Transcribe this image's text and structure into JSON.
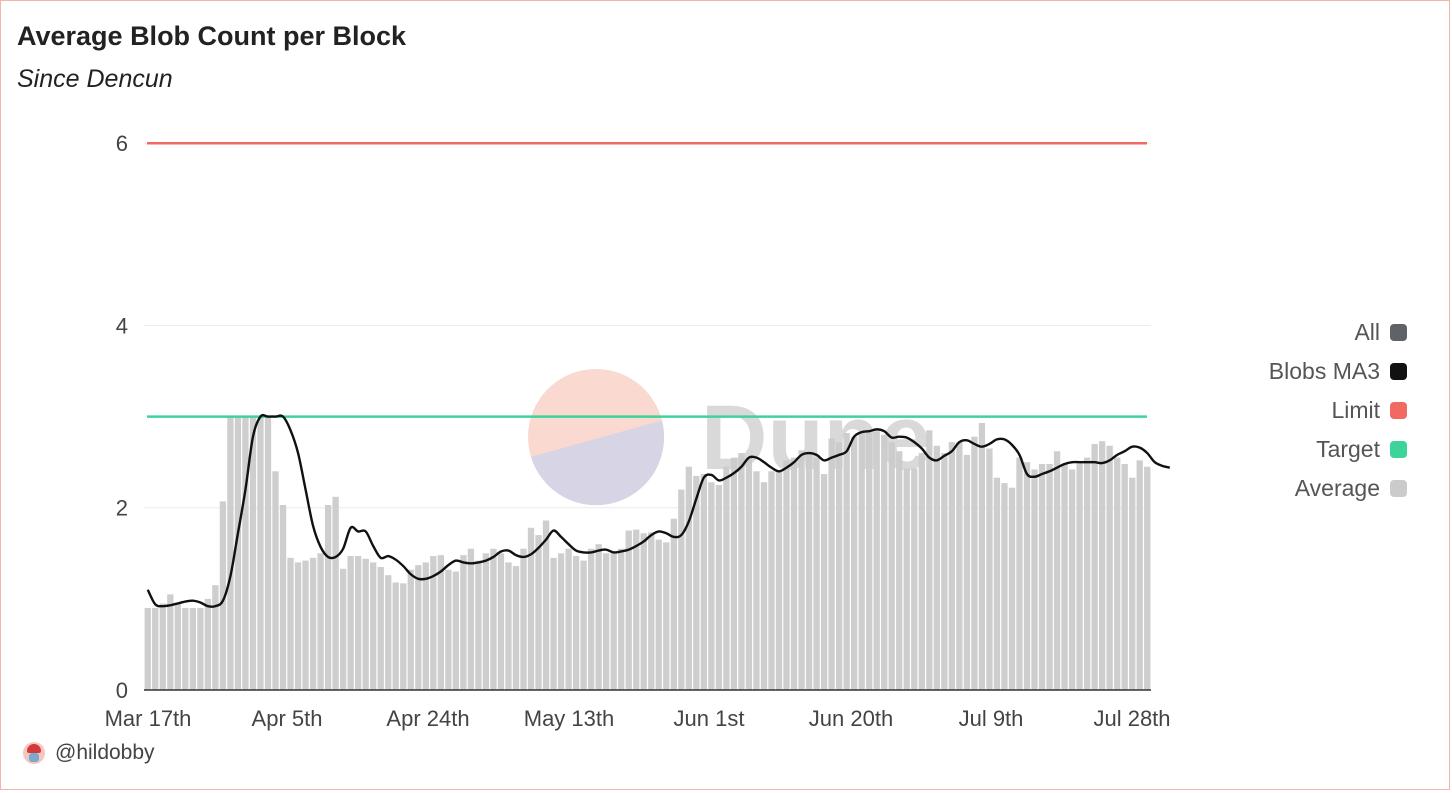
{
  "header": {
    "title": "Average Blob Count per Block",
    "subtitle": "Since Dencun"
  },
  "legend": [
    {
      "label": "All",
      "color": "#5f6266"
    },
    {
      "label": "Blobs MA3",
      "color": "#111111"
    },
    {
      "label": "Limit",
      "color": "#f16a61"
    },
    {
      "label": "Target",
      "color": "#3dd39a"
    },
    {
      "label": "Average",
      "color": "#cbcbcb"
    }
  ],
  "footer": {
    "author": "@hildobby",
    "avatar_icon": "avatar-icon"
  },
  "watermark": {
    "text": "Dune"
  },
  "chart_data": {
    "type": "bar",
    "start_date": "2024-03-16",
    "ylim": [
      0,
      6.2
    ],
    "yticks": [
      0,
      2,
      4,
      6
    ],
    "xtick_labels": [
      "Mar 17th",
      "Apr 5th",
      "Apr 24th",
      "May 13th",
      "Jun 1st",
      "Jun 20th",
      "Jul 9th",
      "Jul 28th"
    ],
    "grid": true,
    "legend_position": "right",
    "series": [
      {
        "name": "Average",
        "type": "bar",
        "color": "#cbcbcb",
        "values": [
          0.9,
          0.9,
          0.95,
          1.05,
          0.95,
          0.9,
          0.9,
          0.9,
          1.0,
          1.15,
          2.07,
          3.0,
          3.0,
          3.0,
          3.0,
          3.0,
          3.0,
          2.4,
          2.03,
          1.45,
          1.4,
          1.42,
          1.45,
          1.5,
          2.03,
          2.12,
          1.33,
          1.47,
          1.47,
          1.44,
          1.4,
          1.35,
          1.26,
          1.18,
          1.17,
          1.32,
          1.37,
          1.4,
          1.47,
          1.48,
          1.32,
          1.3,
          1.48,
          1.55,
          1.42,
          1.5,
          1.55,
          1.5,
          1.4,
          1.36,
          1.55,
          1.78,
          1.7,
          1.86,
          1.45,
          1.5,
          1.55,
          1.47,
          1.42,
          1.55,
          1.6,
          1.5,
          1.52,
          1.55,
          1.75,
          1.76,
          1.72,
          1.73,
          1.65,
          1.62,
          1.88,
          2.2,
          2.45,
          2.35,
          2.37,
          2.28,
          2.25,
          2.45,
          2.55,
          2.6,
          2.55,
          2.4,
          2.28,
          2.4,
          2.4,
          2.52,
          2.55,
          2.63,
          2.6,
          2.55,
          2.37,
          2.76,
          2.72,
          2.82,
          2.78,
          2.82,
          2.85,
          2.84,
          2.8,
          2.72,
          2.62,
          2.43,
          2.43,
          2.6,
          2.85,
          2.68,
          2.6,
          2.72,
          2.72,
          2.58,
          2.78,
          2.93,
          2.65,
          2.33,
          2.27,
          2.22,
          2.55,
          2.5,
          2.42,
          2.48,
          2.48,
          2.62,
          2.48,
          2.42,
          2.5,
          2.55,
          2.7,
          2.73,
          2.68,
          2.55,
          2.48,
          2.33,
          2.52,
          2.45
        ]
      },
      {
        "name": "Blobs MA3",
        "type": "line",
        "color": "#111111",
        "values": [
          1.1,
          0.94,
          0.92,
          0.93,
          0.95,
          0.97,
          0.98,
          0.96,
          0.92,
          0.92,
          0.98,
          1.25,
          1.72,
          2.2,
          2.78,
          3.0,
          3.0,
          3.0,
          3.0,
          2.85,
          2.6,
          2.2,
          1.8,
          1.57,
          1.46,
          1.46,
          1.55,
          1.78,
          1.74,
          1.74,
          1.58,
          1.45,
          1.47,
          1.43,
          1.36,
          1.27,
          1.22,
          1.22,
          1.25,
          1.3,
          1.37,
          1.42,
          1.4,
          1.39,
          1.4,
          1.42,
          1.46,
          1.52,
          1.53,
          1.48,
          1.46,
          1.49,
          1.56,
          1.65,
          1.75,
          1.68,
          1.6,
          1.53,
          1.51,
          1.51,
          1.53,
          1.54,
          1.51,
          1.52,
          1.54,
          1.58,
          1.63,
          1.7,
          1.74,
          1.72,
          1.68,
          1.7,
          1.85,
          2.1,
          2.33,
          2.36,
          2.3,
          2.33,
          2.38,
          2.45,
          2.55,
          2.55,
          2.5,
          2.44,
          2.4,
          2.44,
          2.5,
          2.58,
          2.6,
          2.58,
          2.52,
          2.55,
          2.58,
          2.62,
          2.78,
          2.83,
          2.84,
          2.86,
          2.84,
          2.77,
          2.78,
          2.77,
          2.72,
          2.65,
          2.55,
          2.52,
          2.57,
          2.62,
          2.72,
          2.74,
          2.7,
          2.67,
          2.7,
          2.75,
          2.75,
          2.69,
          2.58,
          2.37,
          2.34,
          2.37,
          2.4,
          2.44,
          2.48,
          2.5,
          2.5,
          2.5,
          2.5,
          2.49,
          2.52,
          2.58,
          2.62,
          2.67,
          2.66,
          2.6,
          2.5,
          2.46,
          2.44
        ]
      },
      {
        "name": "Limit",
        "type": "hline",
        "color": "#f16a61",
        "value": 6
      },
      {
        "name": "Target",
        "type": "hline",
        "color": "#3dd39a",
        "value": 3
      }
    ]
  }
}
